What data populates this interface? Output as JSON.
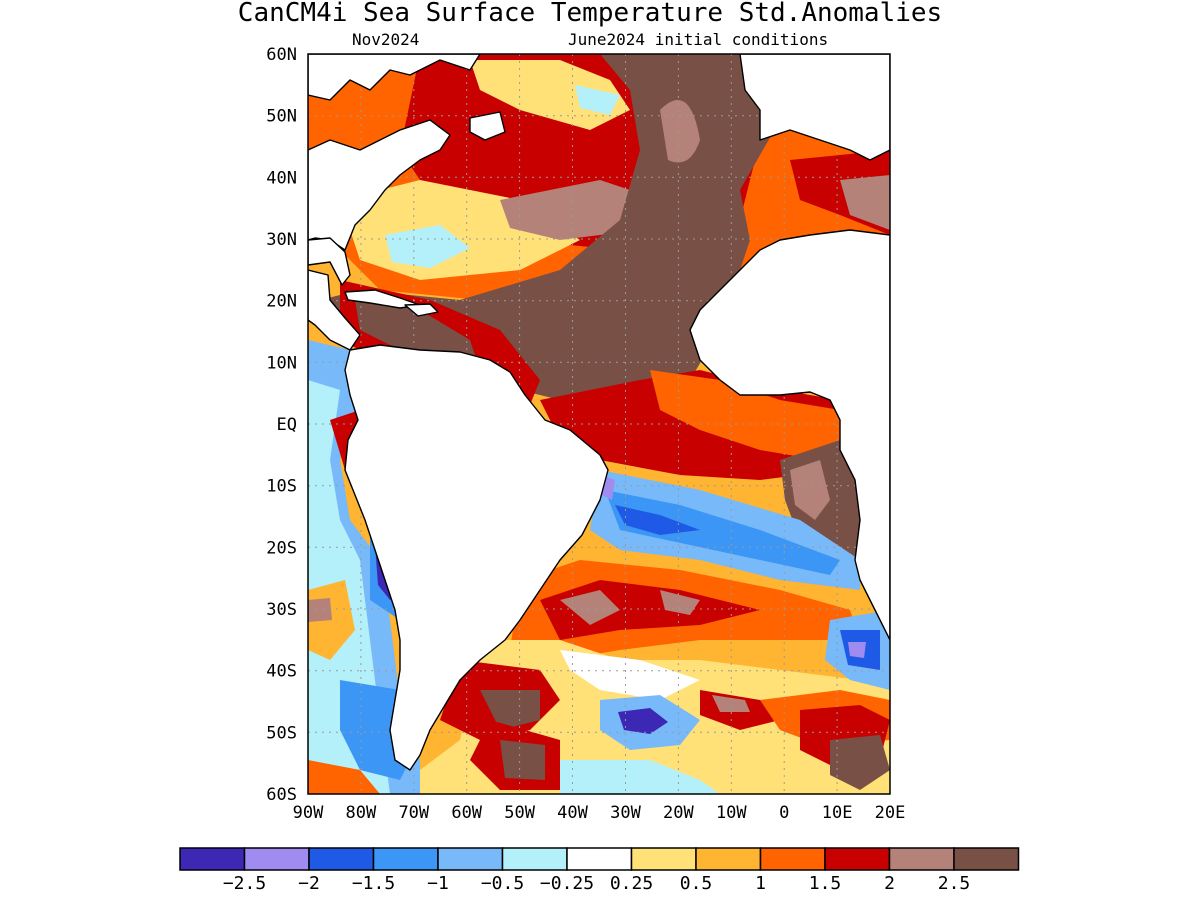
{
  "figure": {
    "title": "CanCM4i Sea Surface Temperature Std.Anomalies",
    "valid_label": "Nov2024",
    "init_label": "June2024 initial conditions"
  },
  "map": {
    "region": "Atlantic Ocean",
    "lat_ticks": [
      "60N",
      "50N",
      "40N",
      "30N",
      "20N",
      "10N",
      "EQ",
      "10S",
      "20S",
      "30S",
      "40S",
      "50S",
      "60S"
    ],
    "lon_ticks": [
      "90W",
      "80W",
      "70W",
      "60W",
      "50W",
      "40W",
      "30W",
      "20W",
      "10W",
      "0",
      "10E",
      "20E"
    ],
    "lat_range": [
      -60,
      60
    ],
    "lon_range": [
      -90,
      20
    ],
    "grid": true
  },
  "colorbar": {
    "colors": [
      "#3c28b4",
      "#a08cf0",
      "#1e5ae6",
      "#3c96f5",
      "#78b9fa",
      "#b4f0fa",
      "#ffffff",
      "#ffe178",
      "#ffb432",
      "#ff6400",
      "#c80000",
      "#b48278",
      "#785046"
    ],
    "labels": [
      "−2.5",
      "−2",
      "−1.5",
      "−1",
      "−0.5",
      "−0.25",
      "0.25",
      "0.5",
      "1",
      "1.5",
      "2",
      "2.5"
    ]
  }
}
